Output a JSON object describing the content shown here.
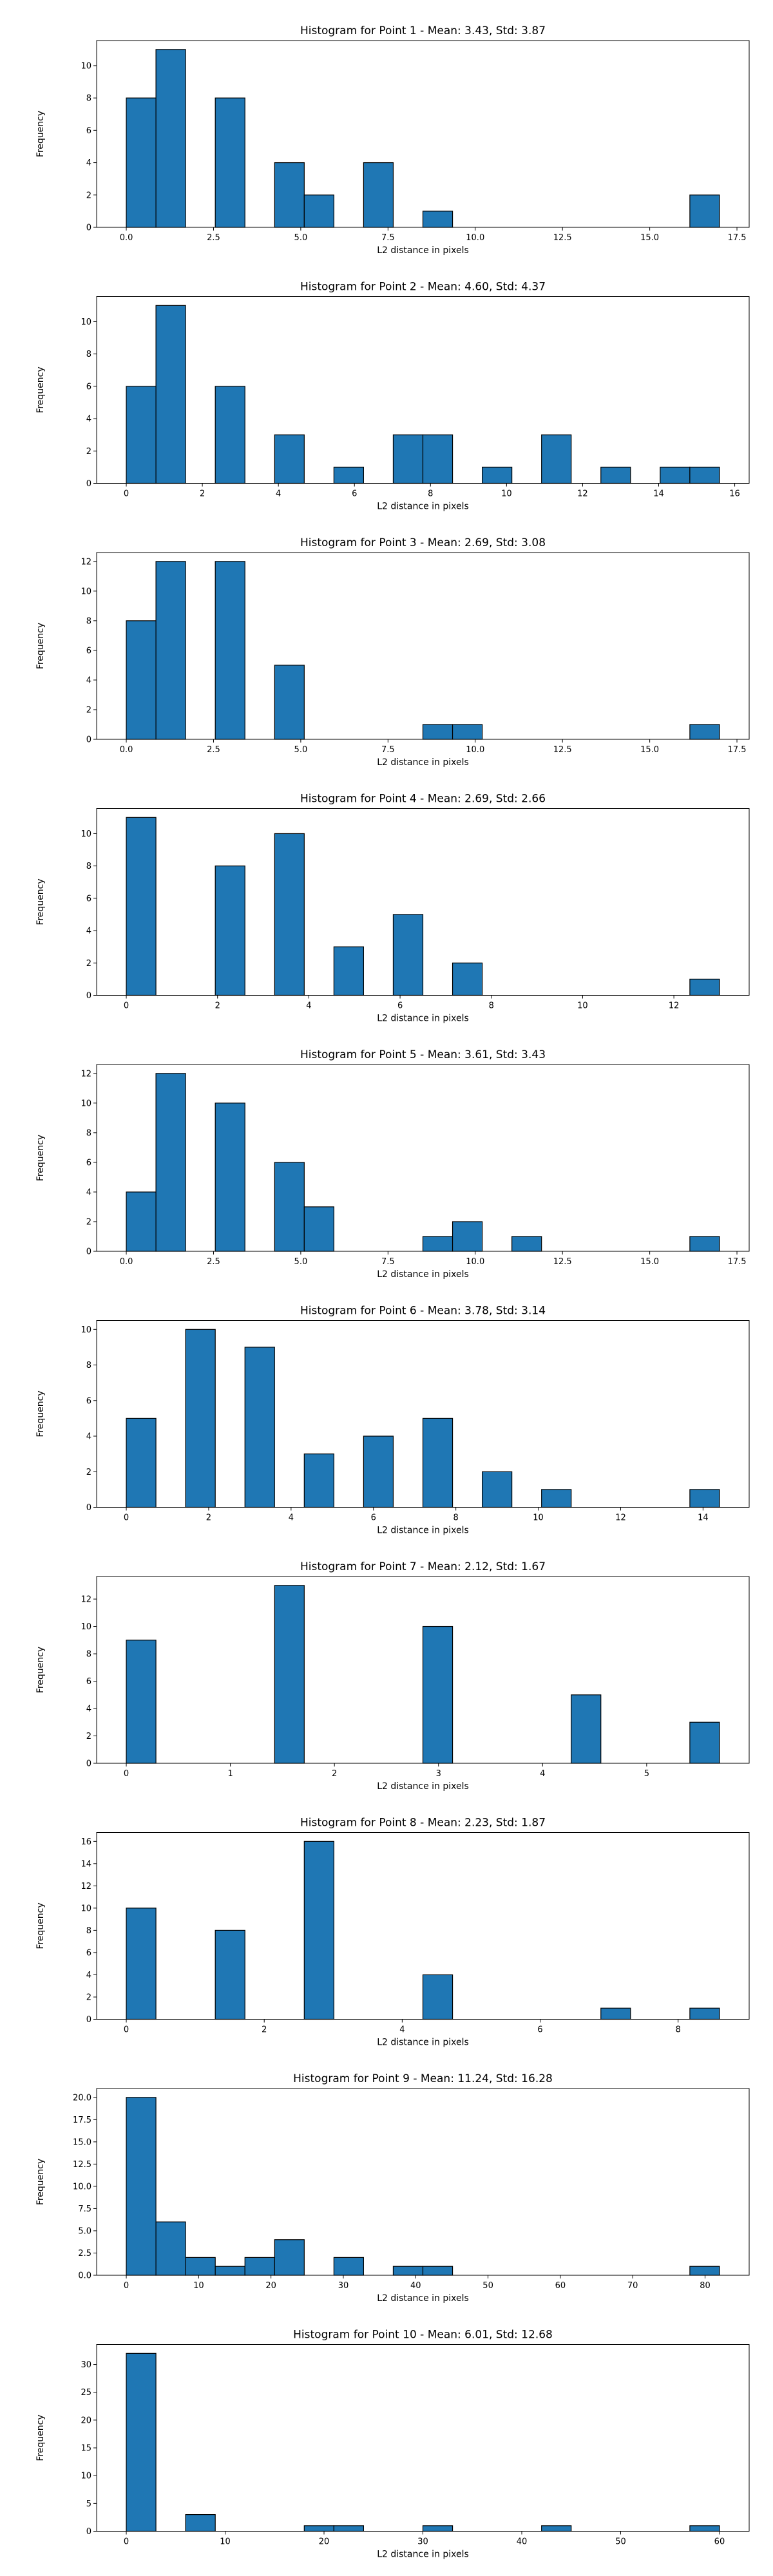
{
  "chart_data": [
    {
      "type": "bar",
      "title": "Histogram for Point 1 - Mean: 3.43, Std: 3.87",
      "xlabel": "L2 distance in pixels",
      "ylabel": "Frequency",
      "xlim": [
        -0.85,
        17.85
      ],
      "ylim": [
        0,
        11.55
      ],
      "xticks": [
        0,
        2.5,
        5,
        7.5,
        10,
        12.5,
        15,
        17.5
      ],
      "xtick_labels": [
        "0.0",
        "2.5",
        "5.0",
        "7.5",
        "10.0",
        "12.5",
        "15.0",
        "17.5"
      ],
      "yticks": [
        0,
        2,
        4,
        6,
        8,
        10
      ],
      "yticks_labels": [
        "0",
        "2",
        "4",
        "6",
        "8",
        "10"
      ],
      "bin_edges": [
        0.0,
        0.85,
        1.7,
        2.55,
        3.4,
        4.25,
        5.1,
        5.95,
        6.8,
        7.65,
        8.5,
        9.35,
        10.2,
        11.05,
        11.9,
        12.75,
        13.6,
        14.45,
        15.3,
        16.15,
        17.0
      ],
      "counts": [
        8,
        11,
        0,
        8,
        0,
        4,
        2,
        0,
        4,
        0,
        1,
        0,
        0,
        0,
        0,
        0,
        0,
        0,
        0,
        2
      ]
    },
    {
      "type": "bar",
      "title": "Histogram for Point 2 - Mean: 4.60, Std: 4.37",
      "xlabel": "L2 distance in pixels",
      "ylabel": "Frequency",
      "xlim": [
        -0.78,
        16.38
      ],
      "ylim": [
        0,
        11.55
      ],
      "xticks": [
        0,
        2,
        4,
        6,
        8,
        10,
        12,
        14,
        16
      ],
      "xtick_labels": [
        "0",
        "2",
        "4",
        "6",
        "8",
        "10",
        "12",
        "14",
        "16"
      ],
      "yticks": [
        0,
        2,
        4,
        6,
        8,
        10
      ],
      "yticks_labels": [
        "0",
        "2",
        "4",
        "6",
        "8",
        "10"
      ],
      "bin_edges": [
        0.0,
        0.78,
        1.56,
        2.34,
        3.12,
        3.9,
        4.68,
        5.46,
        6.24,
        7.02,
        7.8,
        8.58,
        9.36,
        10.14,
        10.92,
        11.7,
        12.48,
        13.26,
        14.04,
        14.82,
        15.6
      ],
      "counts": [
        6,
        11,
        0,
        6,
        0,
        3,
        0,
        1,
        0,
        3,
        3,
        0,
        1,
        0,
        3,
        0,
        1,
        0,
        1,
        1
      ]
    },
    {
      "type": "bar",
      "title": "Histogram for Point 3 - Mean: 2.69, Std: 3.08",
      "xlabel": "L2 distance in pixels",
      "ylabel": "Frequency",
      "xlim": [
        -0.85,
        17.85
      ],
      "ylim": [
        0,
        12.6
      ],
      "xticks": [
        0,
        2.5,
        5,
        7.5,
        10,
        12.5,
        15,
        17.5
      ],
      "xtick_labels": [
        "0.0",
        "2.5",
        "5.0",
        "7.5",
        "10.0",
        "12.5",
        "15.0",
        "17.5"
      ],
      "yticks": [
        0,
        2,
        4,
        6,
        8,
        10,
        12
      ],
      "yticks_labels": [
        "0",
        "2",
        "4",
        "6",
        "8",
        "10",
        "12"
      ],
      "bin_edges": [
        0.0,
        0.85,
        1.7,
        2.55,
        3.4,
        4.25,
        5.1,
        5.95,
        6.8,
        7.65,
        8.5,
        9.35,
        10.2,
        11.05,
        11.9,
        12.75,
        13.6,
        14.45,
        15.3,
        16.15,
        17.0
      ],
      "counts": [
        8,
        12,
        0,
        12,
        0,
        5,
        0,
        0,
        0,
        0,
        1,
        1,
        0,
        0,
        0,
        0,
        0,
        0,
        0,
        1
      ]
    },
    {
      "type": "bar",
      "title": "Histogram for Point 4 - Mean: 2.69, Std: 2.66",
      "xlabel": "L2 distance in pixels",
      "ylabel": "Frequency",
      "xlim": [
        -0.65,
        13.65
      ],
      "ylim": [
        0,
        11.55
      ],
      "xticks": [
        0,
        2,
        4,
        6,
        8,
        10,
        12
      ],
      "xtick_labels": [
        "0",
        "2",
        "4",
        "6",
        "8",
        "10",
        "12"
      ],
      "yticks": [
        0,
        2,
        4,
        6,
        8,
        10
      ],
      "yticks_labels": [
        "0",
        "2",
        "4",
        "6",
        "8",
        "10"
      ],
      "bin_edges": [
        0.0,
        0.65,
        1.3,
        1.95,
        2.6,
        3.25,
        3.9,
        4.55,
        5.2,
        5.85,
        6.5,
        7.15,
        7.8,
        8.45,
        9.1,
        9.75,
        10.4,
        11.05,
        11.7,
        12.35,
        13.0
      ],
      "counts": [
        11,
        0,
        0,
        8,
        0,
        10,
        0,
        3,
        0,
        5,
        0,
        2,
        0,
        0,
        0,
        0,
        0,
        0,
        0,
        1
      ]
    },
    {
      "type": "bar",
      "title": "Histogram for Point 5 - Mean: 3.61, Std: 3.43",
      "xlabel": "L2 distance in pixels",
      "ylabel": "Frequency",
      "xlim": [
        -0.85,
        17.85
      ],
      "ylim": [
        0,
        12.6
      ],
      "xticks": [
        0,
        2.5,
        5,
        7.5,
        10,
        12.5,
        15,
        17.5
      ],
      "xtick_labels": [
        "0.0",
        "2.5",
        "5.0",
        "7.5",
        "10.0",
        "12.5",
        "15.0",
        "17.5"
      ],
      "yticks": [
        0,
        2,
        4,
        6,
        8,
        10,
        12
      ],
      "yticks_labels": [
        "0",
        "2",
        "4",
        "6",
        "8",
        "10",
        "12"
      ],
      "bin_edges": [
        0.0,
        0.85,
        1.7,
        2.55,
        3.4,
        4.25,
        5.1,
        5.95,
        6.8,
        7.65,
        8.5,
        9.35,
        10.2,
        11.05,
        11.9,
        12.75,
        13.6,
        14.45,
        15.3,
        16.15,
        17.0
      ],
      "counts": [
        4,
        12,
        0,
        10,
        0,
        6,
        3,
        0,
        0,
        0,
        1,
        2,
        0,
        1,
        0,
        0,
        0,
        0,
        0,
        1
      ]
    },
    {
      "type": "bar",
      "title": "Histogram for Point 6 - Mean: 3.78, Std: 3.14",
      "xlabel": "L2 distance in pixels",
      "ylabel": "Frequency",
      "xlim": [
        -0.72,
        15.12
      ],
      "ylim": [
        0,
        10.5
      ],
      "xticks": [
        0,
        2,
        4,
        6,
        8,
        10,
        12,
        14
      ],
      "xtick_labels": [
        "0",
        "2",
        "4",
        "6",
        "8",
        "10",
        "12",
        "14"
      ],
      "yticks": [
        0,
        2,
        4,
        6,
        8,
        10
      ],
      "yticks_labels": [
        "0",
        "2",
        "4",
        "6",
        "8",
        "10"
      ],
      "bin_edges": [
        0.0,
        0.72,
        1.44,
        2.16,
        2.88,
        3.6,
        4.32,
        5.04,
        5.76,
        6.48,
        7.2,
        7.92,
        8.64,
        9.36,
        10.08,
        10.8,
        11.52,
        12.24,
        12.96,
        13.68,
        14.4
      ],
      "counts": [
        5,
        0,
        10,
        0,
        9,
        0,
        3,
        0,
        4,
        0,
        5,
        0,
        2,
        0,
        1,
        0,
        0,
        0,
        0,
        1
      ]
    },
    {
      "type": "bar",
      "title": "Histogram for Point 7 - Mean: 2.12, Std: 1.67",
      "xlabel": "L2 distance in pixels",
      "ylabel": "Frequency",
      "xlim": [
        -0.285,
        5.985
      ],
      "ylim": [
        0,
        13.65
      ],
      "xticks": [
        0,
        1,
        2,
        3,
        4,
        5
      ],
      "xtick_labels": [
        "0",
        "1",
        "2",
        "3",
        "4",
        "5"
      ],
      "yticks": [
        0,
        2,
        4,
        6,
        8,
        10,
        12
      ],
      "yticks_labels": [
        "0",
        "2",
        "4",
        "6",
        "8",
        "10",
        "12"
      ],
      "bin_edges": [
        0.0,
        0.285,
        0.57,
        0.855,
        1.14,
        1.425,
        1.71,
        1.995,
        2.28,
        2.565,
        2.85,
        3.135,
        3.42,
        3.705,
        3.99,
        4.275,
        4.56,
        4.845,
        5.13,
        5.415,
        5.7
      ],
      "counts": [
        9,
        0,
        0,
        0,
        0,
        13,
        0,
        0,
        0,
        0,
        10,
        0,
        0,
        0,
        0,
        5,
        0,
        0,
        0,
        3
      ]
    },
    {
      "type": "bar",
      "title": "Histogram for Point 8 - Mean: 2.23, Std: 1.87",
      "xlabel": "L2 distance in pixels",
      "ylabel": "Frequency",
      "xlim": [
        -0.43,
        9.03
      ],
      "ylim": [
        0,
        16.8
      ],
      "xticks": [
        0,
        2,
        4,
        6,
        8
      ],
      "xtick_labels": [
        "0",
        "2",
        "4",
        "6",
        "8"
      ],
      "yticks": [
        0,
        2,
        4,
        6,
        8,
        10,
        12,
        14,
        16
      ],
      "yticks_labels": [
        "0",
        "2",
        "4",
        "6",
        "8",
        "10",
        "12",
        "14",
        "16"
      ],
      "bin_edges": [
        0.0,
        0.43,
        0.86,
        1.29,
        1.72,
        2.15,
        2.58,
        3.01,
        3.44,
        3.87,
        4.3,
        4.73,
        5.16,
        5.59,
        6.02,
        6.45,
        6.88,
        7.31,
        7.74,
        8.17,
        8.6
      ],
      "counts": [
        10,
        0,
        0,
        8,
        0,
        0,
        16,
        0,
        0,
        0,
        4,
        0,
        0,
        0,
        0,
        0,
        1,
        0,
        0,
        1
      ]
    },
    {
      "type": "bar",
      "title": "Histogram for Point 9 - Mean: 11.24, Std: 16.28",
      "xlabel": "L2 distance in pixels",
      "ylabel": "Frequency",
      "xlim": [
        -4.1,
        86.1
      ],
      "ylim": [
        0,
        21
      ],
      "xticks": [
        0,
        10,
        20,
        30,
        40,
        50,
        60,
        70,
        80
      ],
      "xtick_labels": [
        "0",
        "10",
        "20",
        "30",
        "40",
        "50",
        "60",
        "70",
        "80"
      ],
      "yticks": [
        0,
        2.5,
        5,
        7.5,
        10,
        12.5,
        15,
        17.5,
        20
      ],
      "yticks_labels": [
        "0.0",
        "2.5",
        "5.0",
        "7.5",
        "10.0",
        "12.5",
        "15.0",
        "17.5",
        "20.0"
      ],
      "bin_edges": [
        0.0,
        4.1,
        8.2,
        12.3,
        16.4,
        20.5,
        24.6,
        28.7,
        32.8,
        36.9,
        41.0,
        45.1,
        49.2,
        53.3,
        57.4,
        61.5,
        65.6,
        69.7,
        73.8,
        77.9,
        82.0
      ],
      "counts": [
        20,
        6,
        2,
        1,
        2,
        4,
        0,
        2,
        0,
        1,
        1,
        0,
        0,
        0,
        0,
        0,
        0,
        0,
        0,
        1
      ]
    },
    {
      "type": "bar",
      "title": "Histogram for Point 10 - Mean: 6.01, Std: 12.68",
      "xlabel": "L2 distance in pixels",
      "ylabel": "Frequency",
      "xlim": [
        -3.0,
        63.0
      ],
      "ylim": [
        0,
        33.6
      ],
      "xticks": [
        0,
        10,
        20,
        30,
        40,
        50,
        60
      ],
      "xtick_labels": [
        "0",
        "10",
        "20",
        "30",
        "40",
        "50",
        "60"
      ],
      "yticks": [
        0,
        5,
        10,
        15,
        20,
        25,
        30
      ],
      "yticks_labels": [
        "0",
        "5",
        "10",
        "15",
        "20",
        "25",
        "30"
      ],
      "bin_edges": [
        0.0,
        3.0,
        6.0,
        9.0,
        12.0,
        15.0,
        18.0,
        21.0,
        24.0,
        27.0,
        30.0,
        33.0,
        36.0,
        39.0,
        42.0,
        45.0,
        48.0,
        51.0,
        54.0,
        57.0,
        60.0
      ],
      "counts": [
        32,
        0,
        3,
        0,
        0,
        0,
        1,
        1,
        0,
        0,
        1,
        0,
        0,
        0,
        1,
        0,
        0,
        0,
        0,
        1
      ]
    }
  ]
}
